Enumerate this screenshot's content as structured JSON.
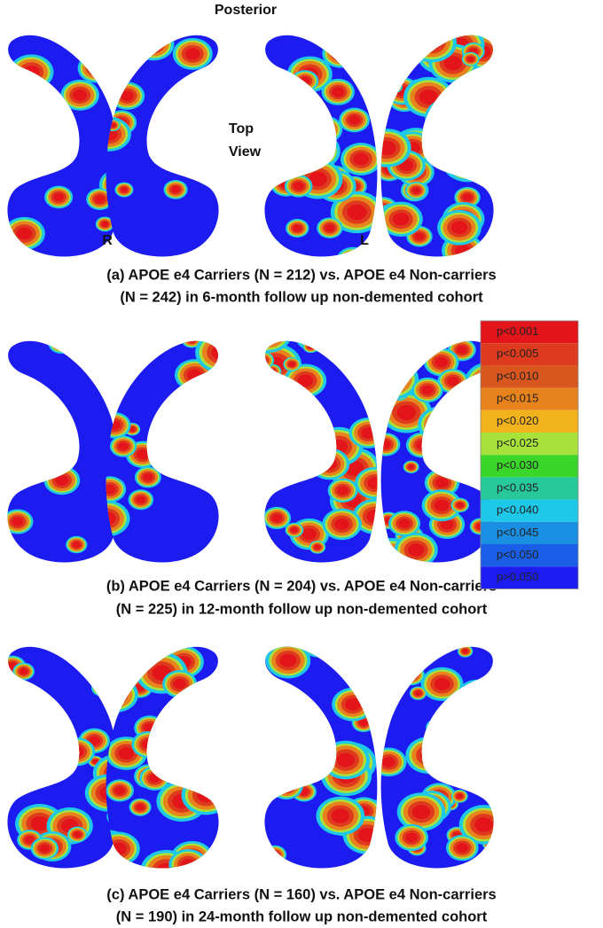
{
  "labels": {
    "posterior": "Posterior",
    "top": "Top",
    "view": "View",
    "right": "R",
    "left": "L"
  },
  "panels": [
    {
      "caption": [
        "(a) APOE e4 Carriers (N = 212) vs. APOE e4 Non-carriers",
        "(N = 242) in 6-month follow up non-demented cohort"
      ]
    },
    {
      "caption": [
        "(b) APOE e4 Carriers (N = 204) vs. APOE e4 Non-carriers",
        "(N = 225) in 12-month follow up non-demented cohort"
      ]
    },
    {
      "caption": [
        "(c) APOE e4 Carriers (N = 160) vs. APOE e4 Non-carriers",
        "(N = 190) in 24-month follow up non-demented cohort"
      ]
    }
  ],
  "legend": {
    "items": [
      {
        "label": "p<0.001",
        "color": "#e4141b"
      },
      {
        "label": "p<0.005",
        "color": "#dd3a1e"
      },
      {
        "label": "p<0.010",
        "color": "#d9561f"
      },
      {
        "label": "p<0.015",
        "color": "#e8821c"
      },
      {
        "label": "p<0.020",
        "color": "#f2b21b"
      },
      {
        "label": "p<0.025",
        "color": "#a8e23a"
      },
      {
        "label": "p<0.030",
        "color": "#3ad72a"
      },
      {
        "label": "p<0.035",
        "color": "#27c99a"
      },
      {
        "label": "p<0.040",
        "color": "#1dc8e8"
      },
      {
        "label": "p<0.045",
        "color": "#1a8ee0"
      },
      {
        "label": "p<0.050",
        "color": "#1a5ee8"
      },
      {
        "label": "p>0.050",
        "color": "#1c1cf0"
      }
    ]
  }
}
